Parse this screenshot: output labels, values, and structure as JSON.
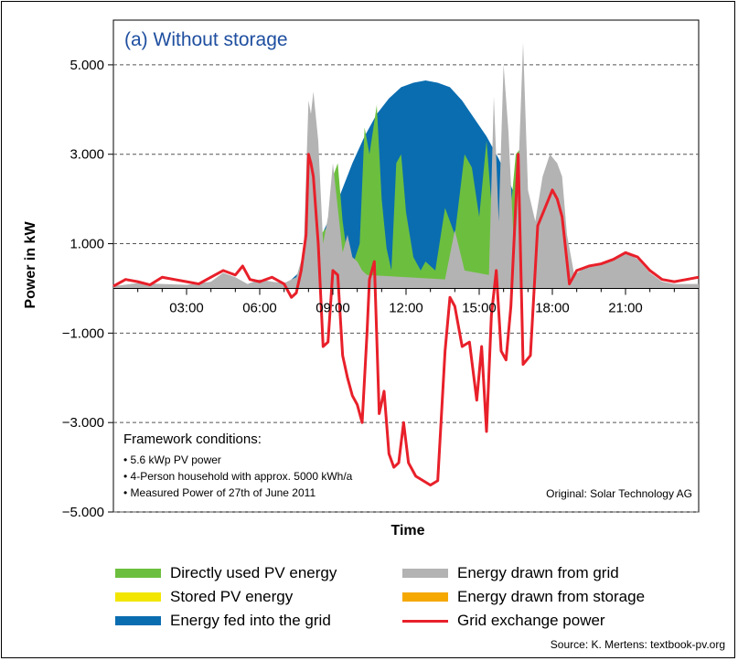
{
  "chart_data": {
    "type": "area",
    "title": "(a) Without storage",
    "xlabel": "Time",
    "ylabel": "Power in kW",
    "xlim": [
      0,
      24
    ],
    "ylim": [
      -5000,
      6000
    ],
    "x_ticks": [
      {
        "value": 3,
        "label": "03:00"
      },
      {
        "value": 6,
        "label": "06:00"
      },
      {
        "value": 9,
        "label": "09:00"
      },
      {
        "value": 12,
        "label": "12:00"
      },
      {
        "value": 15,
        "label": "15:00"
      },
      {
        "value": 18,
        "label": "18:00"
      },
      {
        "value": 21,
        "label": "21:00"
      }
    ],
    "y_ticks": [
      {
        "value": 5000,
        "label": "5.000"
      },
      {
        "value": 3000,
        "label": "3.000"
      },
      {
        "value": 1000,
        "label": "1.000"
      },
      {
        "value": -1000,
        "label": "−1.000"
      },
      {
        "value": -3000,
        "label": "−3.000"
      },
      {
        "value": -5000,
        "label": "−5.000"
      }
    ],
    "grid": "horizontal-dashed",
    "series": [
      {
        "name": "Energy fed into the grid",
        "color": "#0a6db0",
        "kind": "area",
        "points": [
          [
            5.5,
            0
          ],
          [
            6.5,
            30
          ],
          [
            7.2,
            150
          ],
          [
            7.8,
            450
          ],
          [
            8.3,
            900
          ],
          [
            8.8,
            1500
          ],
          [
            9.3,
            2100
          ],
          [
            9.8,
            2800
          ],
          [
            10.3,
            3400
          ],
          [
            10.8,
            3900
          ],
          [
            11.3,
            4250
          ],
          [
            11.8,
            4500
          ],
          [
            12.3,
            4600
          ],
          [
            12.8,
            4650
          ],
          [
            13.3,
            4600
          ],
          [
            13.8,
            4500
          ],
          [
            14.3,
            4200
          ],
          [
            14.8,
            3800
          ],
          [
            15.3,
            3400
          ],
          [
            15.8,
            2900
          ],
          [
            16.3,
            2300
          ],
          [
            16.8,
            1600
          ],
          [
            17.3,
            1100
          ],
          [
            17.8,
            600
          ],
          [
            18.3,
            250
          ],
          [
            18.8,
            80
          ],
          [
            19.3,
            10
          ],
          [
            19.6,
            0
          ]
        ]
      },
      {
        "name": "Directly used PV energy",
        "color": "#6cbf3e",
        "kind": "area",
        "points": [
          [
            6.0,
            0
          ],
          [
            7.4,
            100
          ],
          [
            7.8,
            300
          ],
          [
            8.0,
            800
          ],
          [
            8.2,
            500
          ],
          [
            8.5,
            1200
          ],
          [
            8.8,
            1400
          ],
          [
            9.0,
            2500
          ],
          [
            9.2,
            2800
          ],
          [
            9.4,
            1500
          ],
          [
            9.6,
            700
          ],
          [
            9.8,
            500
          ],
          [
            10.1,
            1000
          ],
          [
            10.3,
            3600
          ],
          [
            10.5,
            3000
          ],
          [
            10.8,
            4100
          ],
          [
            11.0,
            2000
          ],
          [
            11.2,
            900
          ],
          [
            11.4,
            400
          ],
          [
            11.6,
            2800
          ],
          [
            11.8,
            3000
          ],
          [
            12.0,
            1700
          ],
          [
            12.3,
            700
          ],
          [
            12.6,
            400
          ],
          [
            12.8,
            600
          ],
          [
            13.2,
            400
          ],
          [
            13.6,
            1800
          ],
          [
            14.0,
            1200
          ],
          [
            14.4,
            3000
          ],
          [
            14.7,
            2700
          ],
          [
            15.0,
            1600
          ],
          [
            15.3,
            3300
          ],
          [
            15.6,
            1200
          ],
          [
            15.8,
            600
          ],
          [
            16.0,
            3600
          ],
          [
            16.2,
            1200
          ],
          [
            16.5,
            3000
          ],
          [
            16.8,
            3200
          ],
          [
            17.1,
            1100
          ],
          [
            17.5,
            1800
          ],
          [
            18.0,
            800
          ],
          [
            18.5,
            300
          ],
          [
            19.0,
            50
          ],
          [
            19.6,
            0
          ]
        ]
      },
      {
        "name": "Energy drawn from grid",
        "color": "#b3b3b3",
        "kind": "area",
        "points": [
          [
            0.0,
            50
          ],
          [
            1.0,
            120
          ],
          [
            2.0,
            100
          ],
          [
            3.0,
            80
          ],
          [
            4.0,
            150
          ],
          [
            4.5,
            350
          ],
          [
            5.0,
            250
          ],
          [
            5.5,
            100
          ],
          [
            6.0,
            200
          ],
          [
            6.5,
            150
          ],
          [
            7.0,
            120
          ],
          [
            7.5,
            250
          ],
          [
            7.8,
            800
          ],
          [
            8.0,
            4200
          ],
          [
            8.1,
            3900
          ],
          [
            8.2,
            4400
          ],
          [
            8.4,
            3300
          ],
          [
            8.6,
            1000
          ],
          [
            8.8,
            1600
          ],
          [
            9.0,
            2800
          ],
          [
            9.2,
            1800
          ],
          [
            9.4,
            800
          ],
          [
            9.6,
            1200
          ],
          [
            9.8,
            700
          ],
          [
            10.0,
            600
          ],
          [
            10.2,
            400
          ],
          [
            10.4,
            300
          ],
          [
            13.6,
            200
          ],
          [
            14.0,
            1300
          ],
          [
            14.4,
            400
          ],
          [
            15.4,
            300
          ],
          [
            15.6,
            4300
          ],
          [
            15.8,
            1500
          ],
          [
            16.0,
            5000
          ],
          [
            16.2,
            3500
          ],
          [
            16.4,
            1200
          ],
          [
            16.6,
            2500
          ],
          [
            16.8,
            5500
          ],
          [
            17.0,
            2200
          ],
          [
            17.3,
            1500
          ],
          [
            17.6,
            2500
          ],
          [
            17.9,
            3000
          ],
          [
            18.2,
            2800
          ],
          [
            18.4,
            2500
          ],
          [
            18.6,
            1200
          ],
          [
            18.9,
            300
          ],
          [
            19.3,
            450
          ],
          [
            19.8,
            500
          ],
          [
            20.2,
            600
          ],
          [
            20.6,
            700
          ],
          [
            21.0,
            800
          ],
          [
            21.5,
            650
          ],
          [
            22.0,
            350
          ],
          [
            22.5,
            150
          ],
          [
            23.0,
            100
          ],
          [
            24.0,
            100
          ]
        ]
      },
      {
        "name": "Stored PV energy",
        "color": "#f2e600",
        "kind": "area",
        "points": []
      },
      {
        "name": "Energy drawn from storage",
        "color": "#f5a800",
        "kind": "area",
        "points": []
      },
      {
        "name": "Grid exchange power",
        "color": "#e8202a",
        "kind": "line",
        "points": [
          [
            0.0,
            50
          ],
          [
            0.5,
            200
          ],
          [
            1.0,
            150
          ],
          [
            1.5,
            80
          ],
          [
            2.0,
            250
          ],
          [
            2.5,
            200
          ],
          [
            3.0,
            150
          ],
          [
            3.5,
            100
          ],
          [
            4.0,
            250
          ],
          [
            4.5,
            400
          ],
          [
            5.0,
            300
          ],
          [
            5.3,
            500
          ],
          [
            5.6,
            200
          ],
          [
            6.0,
            150
          ],
          [
            6.5,
            250
          ],
          [
            7.0,
            100
          ],
          [
            7.3,
            -200
          ],
          [
            7.5,
            -100
          ],
          [
            7.7,
            400
          ],
          [
            7.9,
            1200
          ],
          [
            8.0,
            3000
          ],
          [
            8.1,
            2800
          ],
          [
            8.2,
            2500
          ],
          [
            8.4,
            1000
          ],
          [
            8.6,
            -1300
          ],
          [
            8.8,
            -1200
          ],
          [
            9.0,
            400
          ],
          [
            9.2,
            300
          ],
          [
            9.4,
            -1500
          ],
          [
            9.6,
            -2000
          ],
          [
            9.8,
            -2400
          ],
          [
            10.0,
            -2600
          ],
          [
            10.2,
            -3000
          ],
          [
            10.4,
            -1000
          ],
          [
            10.5,
            200
          ],
          [
            10.7,
            600
          ],
          [
            10.9,
            -2800
          ],
          [
            11.1,
            -2300
          ],
          [
            11.3,
            -3700
          ],
          [
            11.5,
            -4000
          ],
          [
            11.7,
            -3900
          ],
          [
            11.9,
            -3000
          ],
          [
            12.1,
            -3900
          ],
          [
            12.4,
            -4200
          ],
          [
            12.7,
            -4300
          ],
          [
            13.0,
            -4400
          ],
          [
            13.3,
            -4300
          ],
          [
            13.6,
            -1400
          ],
          [
            13.8,
            -200
          ],
          [
            14.0,
            -400
          ],
          [
            14.3,
            -1300
          ],
          [
            14.6,
            -1200
          ],
          [
            14.9,
            -2500
          ],
          [
            15.1,
            -1300
          ],
          [
            15.3,
            -3200
          ],
          [
            15.5,
            -600
          ],
          [
            15.7,
            400
          ],
          [
            15.9,
            -1400
          ],
          [
            16.1,
            -1600
          ],
          [
            16.3,
            -400
          ],
          [
            16.6,
            3000
          ],
          [
            16.8,
            -1700
          ],
          [
            17.1,
            -1500
          ],
          [
            17.4,
            1400
          ],
          [
            17.7,
            1800
          ],
          [
            18.0,
            2200
          ],
          [
            18.2,
            2000
          ],
          [
            18.4,
            1600
          ],
          [
            18.6,
            600
          ],
          [
            18.7,
            100
          ],
          [
            19.0,
            400
          ],
          [
            19.5,
            500
          ],
          [
            20.0,
            550
          ],
          [
            20.5,
            650
          ],
          [
            21.0,
            800
          ],
          [
            21.5,
            700
          ],
          [
            22.0,
            400
          ],
          [
            22.5,
            200
          ],
          [
            23.0,
            150
          ],
          [
            23.5,
            200
          ],
          [
            24.0,
            250
          ]
        ]
      }
    ],
    "annotation_box": {
      "heading": "Framework conditions:",
      "bullets": [
        "5.6 kWp PV power",
        "4-Person household with approx. 5000 kWh/a",
        "Measured Power of 27th of June 2011"
      ]
    },
    "credit": "Original: Solar Technology AG",
    "legend_position": "bottom",
    "legend": [
      {
        "label": "Directly used PV energy",
        "color": "#6cbf3e",
        "kind": "swatch"
      },
      {
        "label": "Energy drawn from grid",
        "color": "#b3b3b3",
        "kind": "swatch"
      },
      {
        "label": "Stored PV energy",
        "color": "#f2e600",
        "kind": "swatch"
      },
      {
        "label": "Energy drawn from storage",
        "color": "#f5a800",
        "kind": "swatch"
      },
      {
        "label": "Energy fed into the grid",
        "color": "#0a6db0",
        "kind": "swatch"
      },
      {
        "label": "Grid exchange power",
        "color": "#e8202a",
        "kind": "line"
      }
    ]
  },
  "source": "Source: K. Mertens: textbook-pv.org"
}
